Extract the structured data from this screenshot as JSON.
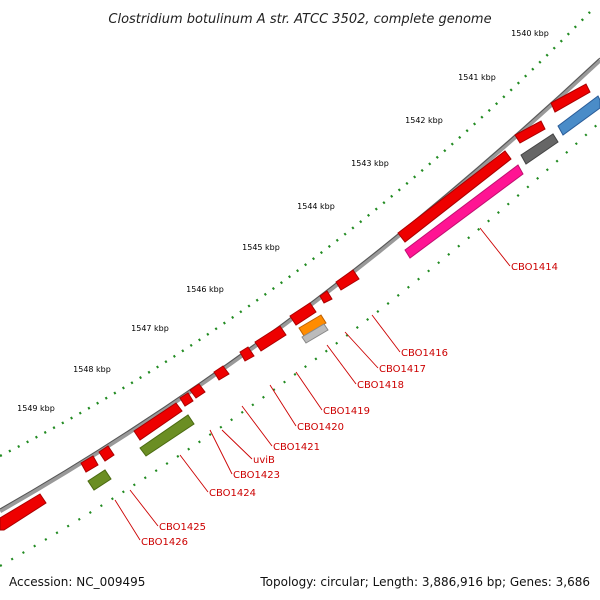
{
  "title": "Clostridium botulinum A str. ATCC 3502, complete genome",
  "scale_labels": [
    "1540 kbp",
    "1541 kbp",
    "1542 kbp",
    "1543 kbp",
    "1544 kbp",
    "1545 kbp",
    "1546 kbp",
    "1547 kbp",
    "1548 kbp",
    "1549 kbp"
  ],
  "gene_labels": [
    "CBO1414",
    "CBO1416",
    "CBO1417",
    "CBO1418",
    "CBO1419",
    "CBO1420",
    "CBO1421",
    "uviB",
    "CBO1423",
    "CBO1424",
    "CBO1425",
    "CBO1426"
  ],
  "footer": {
    "accession": "Accession: NC_009495",
    "summary": "Topology: circular; Length: 3,886,916 bp; Genes: 3,686"
  },
  "colors": {
    "cds": "#ee0000",
    "cds_dark": "#aa0000",
    "pink": "#ff1493",
    "gray": "#666666",
    "blue": "#4a8cc8",
    "olive": "#6b8e23",
    "orange": "#ff8c00",
    "tick": "#006400",
    "backbone": "#888888"
  }
}
